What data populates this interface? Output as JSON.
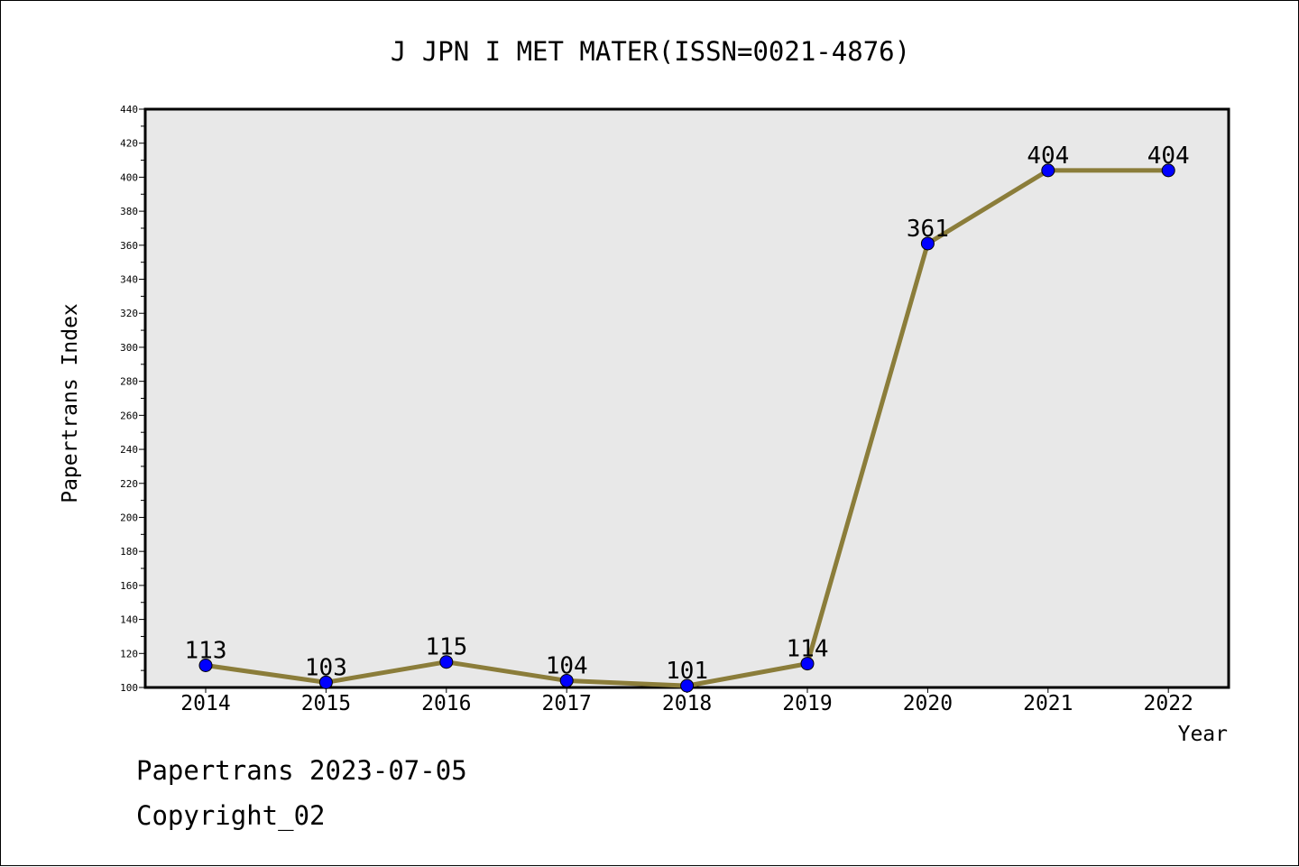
{
  "chart_data": {
    "type": "line",
    "title": "J JPN I MET MATER(ISSN=0021-4876)",
    "xlabel": "Year",
    "ylabel": "Papertrans Index",
    "categories": [
      "2014",
      "2015",
      "2016",
      "2017",
      "2018",
      "2019",
      "2020",
      "2021",
      "2022"
    ],
    "series": [
      {
        "values": [
          113,
          103,
          115,
          104,
          101,
          114,
          361,
          404,
          404
        ]
      }
    ],
    "ylim": [
      100,
      440
    ],
    "yticks": [
      100,
      120,
      140,
      160,
      180,
      200,
      220,
      240,
      260,
      280,
      300,
      320,
      340,
      360,
      380,
      400,
      420,
      440
    ],
    "grid": false,
    "data_labels": true,
    "colors": {
      "line": "#8B7D3A",
      "marker": "#0000FF",
      "plot_bg": "#E8E8E8"
    }
  },
  "footer": {
    "line1": "Papertrans 2023-07-05",
    "line2": "Copyright_02"
  }
}
